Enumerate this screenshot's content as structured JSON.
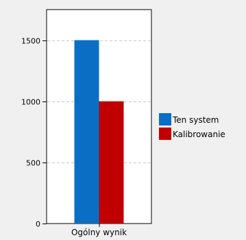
{
  "chart_data": {
    "type": "bar",
    "categories": [
      "Ogólny wynik"
    ],
    "series": [
      {
        "name": "Ten system",
        "values": [
          1500
        ],
        "color": "#0a6fc4"
      },
      {
        "name": "Kalibrowanie",
        "values": [
          1000
        ],
        "color": "#c00000"
      }
    ],
    "ylim": [
      0,
      1750
    ],
    "yticks": [
      0,
      500,
      1000,
      1500
    ],
    "ytick_labels": [
      "0",
      "500",
      "1000",
      "1500"
    ],
    "grid": true,
    "legend_position": "right",
    "plot_background": "#ffffff",
    "grid_color": "#c8c8c8"
  }
}
